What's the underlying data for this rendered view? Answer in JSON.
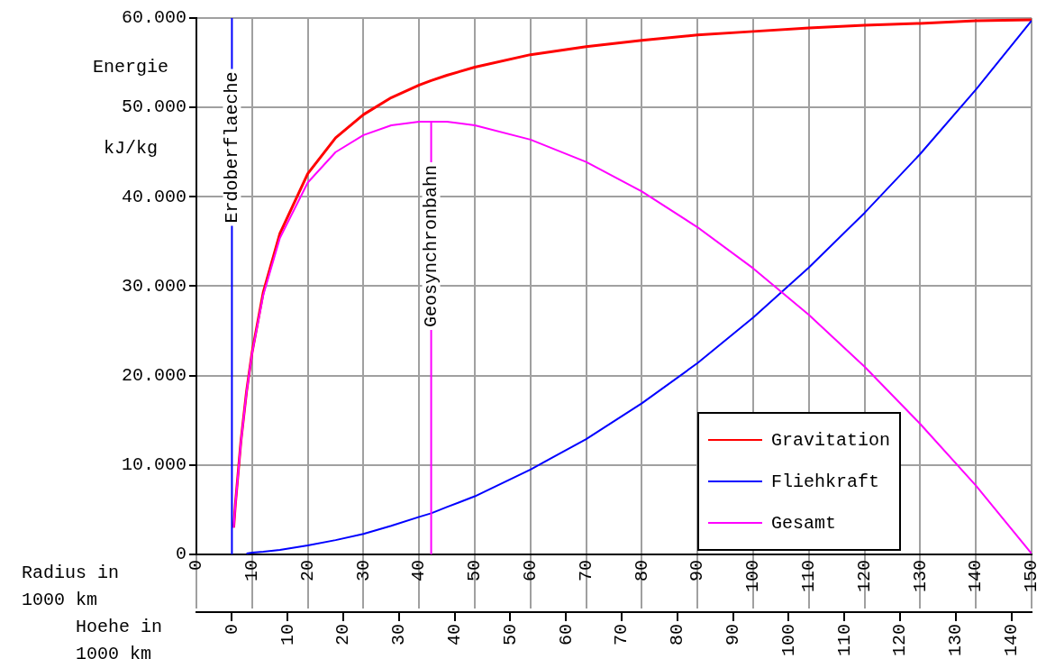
{
  "chart_data": {
    "type": "line",
    "ylabel": "Energie kJ/kg",
    "xlabel": "Radius in 1000 km",
    "x2label": "Hoehe in 1000 km",
    "x": [
      6.7,
      7,
      8,
      9,
      10,
      12,
      15,
      20,
      25,
      30,
      35,
      40,
      42.164,
      45,
      50,
      60,
      70,
      80,
      90,
      100,
      110,
      120,
      130,
      140,
      150
    ],
    "series": [
      {
        "name": "Gravitation",
        "color": "#ff0000",
        "values": [
          3000,
          5600,
          12700,
          18200,
          22600,
          29300,
          35900,
          42600,
          46600,
          49200,
          51100,
          52500,
          53000,
          53600,
          54500,
          55900,
          56800,
          57500,
          58100,
          58500,
          58900,
          59200,
          59400,
          59700,
          59800
        ]
      },
      {
        "name": "Fliehkraft",
        "color": "#0000ff",
        "values": [
          null,
          null,
          null,
          100,
          200,
          300,
          500,
          1000,
          1600,
          2300,
          3200,
          4200,
          4600,
          5300,
          6500,
          9500,
          12900,
          16900,
          21400,
          26500,
          32100,
          38200,
          44800,
          52000,
          59700
        ]
      },
      {
        "name": "Gesamt",
        "color": "#ff00ff",
        "values": [
          3000,
          5500,
          12600,
          18100,
          22500,
          29000,
          35400,
          41600,
          45000,
          46900,
          48000,
          48400,
          48400,
          48400,
          48000,
          46400,
          43900,
          40600,
          36600,
          32000,
          26800,
          21000,
          14600,
          7700,
          100
        ]
      }
    ],
    "xlim": [
      0,
      150
    ],
    "xticks": [
      0,
      10,
      20,
      30,
      40,
      50,
      60,
      70,
      80,
      90,
      100,
      110,
      120,
      130,
      140,
      150
    ],
    "x2lim": [
      -6.378,
      143.622
    ],
    "x2ticks": [
      0,
      10,
      20,
      30,
      40,
      50,
      60,
      70,
      80,
      90,
      100,
      110,
      120,
      130,
      140
    ],
    "ylim": [
      0,
      60000
    ],
    "yticks": [
      {
        "value": 0,
        "label": "0"
      },
      {
        "value": 10000,
        "label": "10.000"
      },
      {
        "value": 20000,
        "label": "20.000"
      },
      {
        "value": 30000,
        "label": "30.000"
      },
      {
        "value": 40000,
        "label": "40.000"
      },
      {
        "value": 50000,
        "label": "50.000"
      },
      {
        "value": 60000,
        "label": "60.000"
      }
    ],
    "ref_lines": [
      {
        "axis": "x",
        "value": 6.378,
        "label": "Erdoberflaeche",
        "color": "#0000ff"
      },
      {
        "axis": "x",
        "value": 42.164,
        "label": "Geosynchronbahn",
        "color": "#ff00ff"
      }
    ],
    "grid": true,
    "legend": "bottom right"
  }
}
